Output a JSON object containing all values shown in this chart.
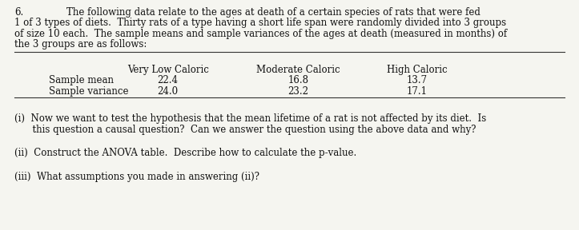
{
  "bg_color": "#f5f5f0",
  "number": "6.",
  "para_line1": "The following data relate to the ages at death of a certain species of rats that were fed",
  "para_line2": "1 of 3 types of diets.  Thirty rats of a type having a short life span were randomly divided into 3 groups",
  "para_line3": "of size 10 each.  The sample means and sample variances of the ages at death (measured in months) of",
  "para_line4": "the 3 groups are as follows:",
  "table_headers": [
    "Very Low Caloric",
    "Moderate Caloric",
    "High Caloric"
  ],
  "table_rows": [
    [
      "Sample mean",
      "22.4",
      "16.8",
      "13.7"
    ],
    [
      "Sample variance",
      "24.0",
      "23.2",
      "17.1"
    ]
  ],
  "q1_line1": "(i)  Now we want to test the hypothesis that the mean lifetime of a rat is not affected by its diet.  Is",
  "q1_line2": "      this question a causal question?  Can we answer the question using the above data and why?",
  "q2": "(ii)  Construct the ANOVA table.  Describe how to calculate the p-value.",
  "q3": "(iii)  What assumptions you made in answering (ii)?",
  "font_size": 8.5,
  "text_color": "#111111",
  "line_color": "#333333"
}
